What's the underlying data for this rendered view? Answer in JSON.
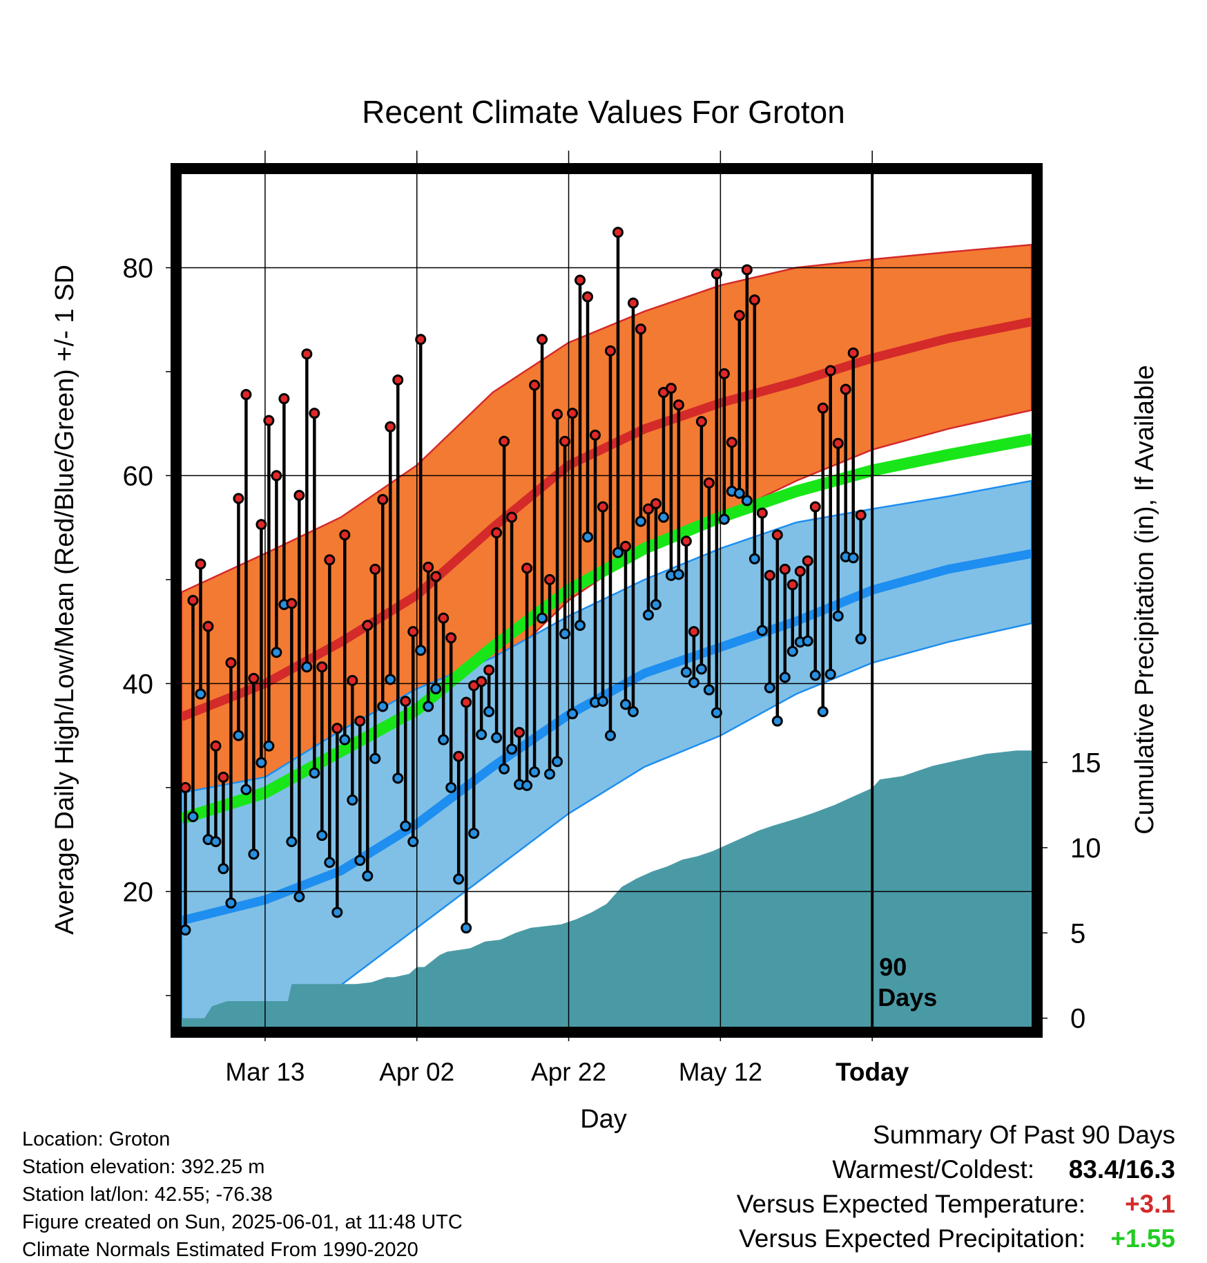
{
  "colors": {
    "high_band": "#f37a32",
    "high_line": "#d42a2a",
    "low_band": "#80c0e6",
    "low_line": "#1e8ef0",
    "mean_line": "#19e619",
    "precip": "#4a9aa6",
    "high_marker": "#e02828",
    "low_marker": "#2890e0",
    "summary_temp": "#d42a2a",
    "summary_precip": "#22cc22"
  },
  "chart_data": {
    "type": "line",
    "title": "Recent Climate Values For Groton",
    "xlabel": "Day",
    "ylabel": "Average Daily High/Low/Mean (Red/Blue/Green) +/- 1 SD",
    "y2label": "Cumulative Precipitation (in), If Available",
    "xlim": [
      -11,
      101
    ],
    "ylim": [
      7,
      89
    ],
    "y2lim": [
      -0.5,
      49.5
    ],
    "x_ticks": [
      0,
      20,
      40,
      60,
      80
    ],
    "x_tick_labels": [
      "Mar 13",
      "Apr 02",
      "Apr 22",
      "May 12",
      "Today"
    ],
    "y_ticks": [
      20,
      40,
      60,
      80
    ],
    "y_tick_labels": [
      "20",
      "40",
      "60",
      "80"
    ],
    "y2_ticks": [
      0,
      5,
      10,
      15
    ],
    "y2_tick_labels": [
      "0",
      "5",
      "10",
      "15"
    ],
    "today_x": 80,
    "today_label_1": "90",
    "today_label_2": "Days",
    "normals": {
      "x": [
        -11,
        0,
        10,
        20,
        30,
        40,
        50,
        60,
        70,
        80,
        90,
        101
      ],
      "high_mean": [
        36.8,
        40,
        44,
        48.5,
        55,
        61,
        64.5,
        67,
        69,
        71.3,
        73.2,
        74.8
      ],
      "high_upper": [
        48.8,
        52.5,
        56,
        61,
        68,
        72.8,
        75.8,
        78.3,
        80,
        80.8,
        81.5,
        82.2
      ],
      "high_lower": [
        26.5,
        29,
        33,
        37,
        41,
        48,
        53,
        56,
        59.5,
        62.5,
        64.5,
        66.3
      ],
      "low_mean": [
        17.2,
        19.2,
        22,
        26.5,
        32,
        37,
        41,
        43.5,
        46,
        49,
        51,
        52.5
      ],
      "low_upper": [
        29.5,
        31,
        35.5,
        39.5,
        42.5,
        46.5,
        50,
        53,
        55.5,
        56.8,
        58,
        59.5
      ],
      "low_lower": [
        5.5,
        7,
        11,
        16.5,
        22,
        27.5,
        32,
        35,
        39,
        42,
        44,
        45.8
      ],
      "mean": [
        27,
        29.5,
        33.5,
        37.5,
        43.5,
        49,
        53,
        56,
        58.5,
        60.5,
        62,
        63.5
      ]
    },
    "daily": {
      "x_start": -10.5,
      "x_step": 1,
      "highs": [
        30,
        48,
        51.5,
        45.5,
        34,
        31,
        42,
        57.8,
        67.8,
        40.5,
        55.3,
        65.3,
        60,
        67.4,
        47.7,
        58.1,
        71.7,
        66,
        41.6,
        51.9,
        35.7,
        54.3,
        40.3,
        36.4,
        45.6,
        51,
        57.7,
        64.7,
        69.2,
        38.3,
        45,
        73.1,
        51.2,
        50.3,
        46.3,
        44.4,
        33,
        38.2,
        39.8,
        40.2,
        41.3,
        54.5,
        63.3,
        56,
        35.3,
        51.1,
        68.7,
        73.1,
        50,
        65.9,
        63.3,
        66,
        78.8,
        77.2,
        63.9,
        57,
        72,
        83.4,
        53.2,
        76.6,
        74.1,
        56.8,
        57.3,
        68,
        68.4,
        66.8,
        53.7,
        45,
        65.2,
        59.3,
        79.4,
        69.8,
        63.2,
        75.4,
        79.8,
        76.9,
        56.4,
        50.4,
        54.3,
        51,
        49.5,
        50.8,
        51.8,
        57,
        66.5,
        70.1,
        63.1,
        68.3,
        71.8,
        56.2
      ],
      "lows": [
        16.3,
        27.2,
        39,
        25,
        24.8,
        22.2,
        18.9,
        35,
        29.8,
        23.6,
        32.4,
        34,
        43,
        47.6,
        24.8,
        19.5,
        41.6,
        31.4,
        25.4,
        22.8,
        18,
        34.6,
        28.8,
        23,
        21.5,
        32.8,
        37.8,
        40.4,
        30.9,
        26.3,
        24.8,
        43.2,
        37.8,
        39.5,
        34.6,
        30,
        21.2,
        16.5,
        25.6,
        35.1,
        37.3,
        34.8,
        31.8,
        33.7,
        30.3,
        30.2,
        31.5,
        46.3,
        31.3,
        32.5,
        44.8,
        37.1,
        45.6,
        54.1,
        38.2,
        38.3,
        35,
        52.6,
        38,
        37.3,
        55.6,
        46.6,
        47.6,
        56,
        50.4,
        50.5,
        41.1,
        40.1,
        41.4,
        39.4,
        37.2,
        55.8,
        58.5,
        58.3,
        57.6,
        52,
        45.1,
        39.6,
        36.4,
        40.6,
        43.1,
        44,
        44.1,
        40.8,
        37.3,
        40.9,
        46.5,
        52.2,
        52.1,
        44.3
      ]
    },
    "precip": {
      "x": [
        -11,
        -8,
        -7,
        -5,
        0,
        3,
        3.5,
        12,
        14,
        16,
        17,
        19,
        20,
        21,
        23,
        24,
        27,
        29,
        31,
        33,
        35,
        37,
        39,
        41,
        43,
        45,
        47,
        49,
        51,
        53,
        55,
        57,
        59,
        61,
        63,
        65,
        67,
        70,
        72,
        75,
        77,
        80,
        81,
        84,
        86,
        88,
        91,
        93,
        95,
        97,
        99,
        101
      ],
      "cum": [
        0,
        0,
        0.7,
        1,
        1,
        1,
        2,
        2,
        2.1,
        2.4,
        2.4,
        2.6,
        3,
        3,
        3.7,
        3.9,
        4.1,
        4.5,
        4.6,
        5,
        5.3,
        5.4,
        5.5,
        5.8,
        6.2,
        6.7,
        7.7,
        8.2,
        8.6,
        8.9,
        9.3,
        9.5,
        9.8,
        10.2,
        10.6,
        11,
        11.3,
        11.7,
        12,
        12.5,
        12.9,
        13.5,
        14,
        14.2,
        14.5,
        14.8,
        15.1,
        15.3,
        15.5,
        15.6,
        15.7,
        15.7
      ]
    },
    "legend": "none"
  },
  "footer": {
    "location": "Location: Groton",
    "elevation": "Station elevation: 392.25 m",
    "latlon": "Station lat/lon: 42.55; -76.38",
    "created": "Figure created on Sun, 2025-06-01, at 11:48 UTC",
    "normals": "Climate Normals Estimated From 1990-2020"
  },
  "summary": {
    "heading": "Summary Of Past 90 Days",
    "warm_cold_label": "Warmest/Coldest:",
    "warm_cold_value": "83.4/16.3",
    "temp_label": "Versus Expected Temperature:",
    "temp_value": "+3.1",
    "precip_label": "Versus Expected Precipitation:",
    "precip_value": "+1.55"
  }
}
